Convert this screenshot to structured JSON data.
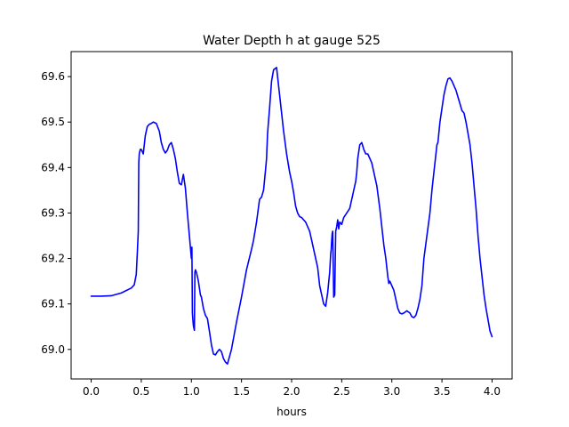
{
  "chart_data": {
    "type": "line",
    "title": "Water Depth h at gauge 525",
    "xlabel": "hours",
    "ylabel": "",
    "xlim": [
      -0.2,
      4.2
    ],
    "ylim": [
      68.935,
      69.655
    ],
    "xticks": [
      0.0,
      0.5,
      1.0,
      1.5,
      2.0,
      2.5,
      3.0,
      3.5,
      4.0
    ],
    "xtick_labels": [
      "0.0",
      "0.5",
      "1.0",
      "1.5",
      "2.0",
      "2.5",
      "3.0",
      "3.5",
      "4.0"
    ],
    "yticks": [
      69.0,
      69.1,
      69.2,
      69.3,
      69.4,
      69.5,
      69.6
    ],
    "ytick_labels": [
      "69.0",
      "69.1",
      "69.2",
      "69.3",
      "69.4",
      "69.5",
      "69.6"
    ],
    "grid": false,
    "series": [
      {
        "color": "#0000ff",
        "x": [
          0.0,
          0.1,
          0.2,
          0.3,
          0.4,
          0.43,
          0.45,
          0.46,
          0.47,
          0.475,
          0.48,
          0.49,
          0.5,
          0.52,
          0.54,
          0.56,
          0.58,
          0.6,
          0.62,
          0.65,
          0.68,
          0.7,
          0.72,
          0.74,
          0.76,
          0.78,
          0.8,
          0.82,
          0.84,
          0.86,
          0.88,
          0.9,
          0.92,
          0.94,
          0.96,
          0.98,
          1.0,
          1.005,
          1.01,
          1.015,
          1.02,
          1.03,
          1.035,
          1.04,
          1.05,
          1.07,
          1.09,
          1.1,
          1.12,
          1.14,
          1.16,
          1.18,
          1.2,
          1.22,
          1.24,
          1.26,
          1.28,
          1.3,
          1.32,
          1.34,
          1.36,
          1.4,
          1.45,
          1.5,
          1.55,
          1.6,
          1.62,
          1.65,
          1.68,
          1.7,
          1.72,
          1.74,
          1.75,
          1.76,
          1.78,
          1.8,
          1.82,
          1.85,
          1.88,
          1.9,
          1.92,
          1.95,
          1.98,
          2.0,
          2.02,
          2.04,
          2.06,
          2.08,
          2.1,
          2.12,
          2.14,
          2.16,
          2.18,
          2.2,
          2.22,
          2.24,
          2.26,
          2.27,
          2.28,
          2.3,
          2.32,
          2.34,
          2.36,
          2.38,
          2.39,
          2.395,
          2.4,
          2.405,
          2.41,
          2.42,
          2.43,
          2.44,
          2.45,
          2.46,
          2.47,
          2.48,
          2.5,
          2.52,
          2.55,
          2.58,
          2.6,
          2.62,
          2.64,
          2.65,
          2.66,
          2.68,
          2.7,
          2.72,
          2.74,
          2.76,
          2.78,
          2.8,
          2.82,
          2.85,
          2.88,
          2.9,
          2.92,
          2.94,
          2.95,
          2.96,
          2.97,
          2.98,
          3.0,
          3.02,
          3.04,
          3.06,
          3.08,
          3.1,
          3.12,
          3.15,
          3.18,
          3.2,
          3.22,
          3.24,
          3.26,
          3.28,
          3.3,
          3.32,
          3.35,
          3.38,
          3.4,
          3.42,
          3.44,
          3.45,
          3.46,
          3.48,
          3.5,
          3.52,
          3.54,
          3.56,
          3.58,
          3.6,
          3.62,
          3.64,
          3.66,
          3.68,
          3.7,
          3.72,
          3.74,
          3.76,
          3.78,
          3.8,
          3.82,
          3.84,
          3.86,
          3.88,
          3.9,
          3.92,
          3.94,
          3.96,
          3.98,
          4.0
        ],
        "y": [
          69.117,
          69.117,
          69.118,
          69.124,
          69.135,
          69.142,
          69.165,
          69.21,
          69.26,
          69.41,
          69.43,
          69.44,
          69.44,
          69.43,
          69.47,
          69.49,
          69.495,
          69.497,
          69.5,
          69.497,
          69.48,
          69.455,
          69.44,
          69.432,
          69.438,
          69.45,
          69.455,
          69.44,
          69.42,
          69.39,
          69.365,
          69.362,
          69.385,
          69.355,
          69.3,
          69.25,
          69.2,
          69.225,
          69.08,
          69.065,
          69.052,
          69.042,
          69.17,
          69.175,
          69.17,
          69.15,
          69.12,
          69.115,
          69.09,
          69.075,
          69.068,
          69.04,
          69.01,
          68.99,
          68.988,
          68.995,
          69.0,
          68.995,
          68.98,
          68.972,
          68.968,
          69.0,
          69.06,
          69.115,
          69.175,
          69.22,
          69.24,
          69.28,
          69.33,
          69.335,
          69.35,
          69.395,
          69.42,
          69.475,
          69.53,
          69.59,
          69.615,
          69.62,
          69.56,
          69.52,
          69.48,
          69.43,
          69.39,
          69.37,
          69.345,
          69.315,
          69.3,
          69.292,
          69.29,
          69.285,
          69.28,
          69.27,
          69.26,
          69.24,
          69.22,
          69.2,
          69.18,
          69.16,
          69.14,
          69.12,
          69.1,
          69.095,
          69.125,
          69.17,
          69.21,
          69.22,
          69.24,
          69.255,
          69.26,
          69.115,
          69.12,
          69.26,
          69.27,
          69.285,
          69.265,
          69.28,
          69.275,
          69.29,
          69.3,
          69.31,
          69.33,
          69.35,
          69.37,
          69.39,
          69.42,
          69.45,
          69.455,
          69.44,
          69.43,
          69.43,
          69.42,
          69.41,
          69.39,
          69.36,
          69.31,
          69.27,
          69.23,
          69.2,
          69.18,
          69.16,
          69.145,
          69.15,
          69.14,
          69.13,
          69.11,
          69.09,
          69.08,
          69.078,
          69.08,
          69.085,
          69.08,
          69.072,
          69.07,
          69.075,
          69.09,
          69.11,
          69.14,
          69.2,
          69.25,
          69.3,
          69.35,
          69.39,
          69.43,
          69.45,
          69.455,
          69.5,
          69.53,
          69.56,
          69.58,
          69.595,
          69.597,
          69.59,
          69.58,
          69.57,
          69.555,
          69.54,
          69.525,
          69.52,
          69.5,
          69.475,
          69.45,
          69.41,
          69.36,
          69.31,
          69.25,
          69.2,
          69.16,
          69.12,
          69.09,
          69.065,
          69.04,
          69.028
        ]
      }
    ]
  }
}
